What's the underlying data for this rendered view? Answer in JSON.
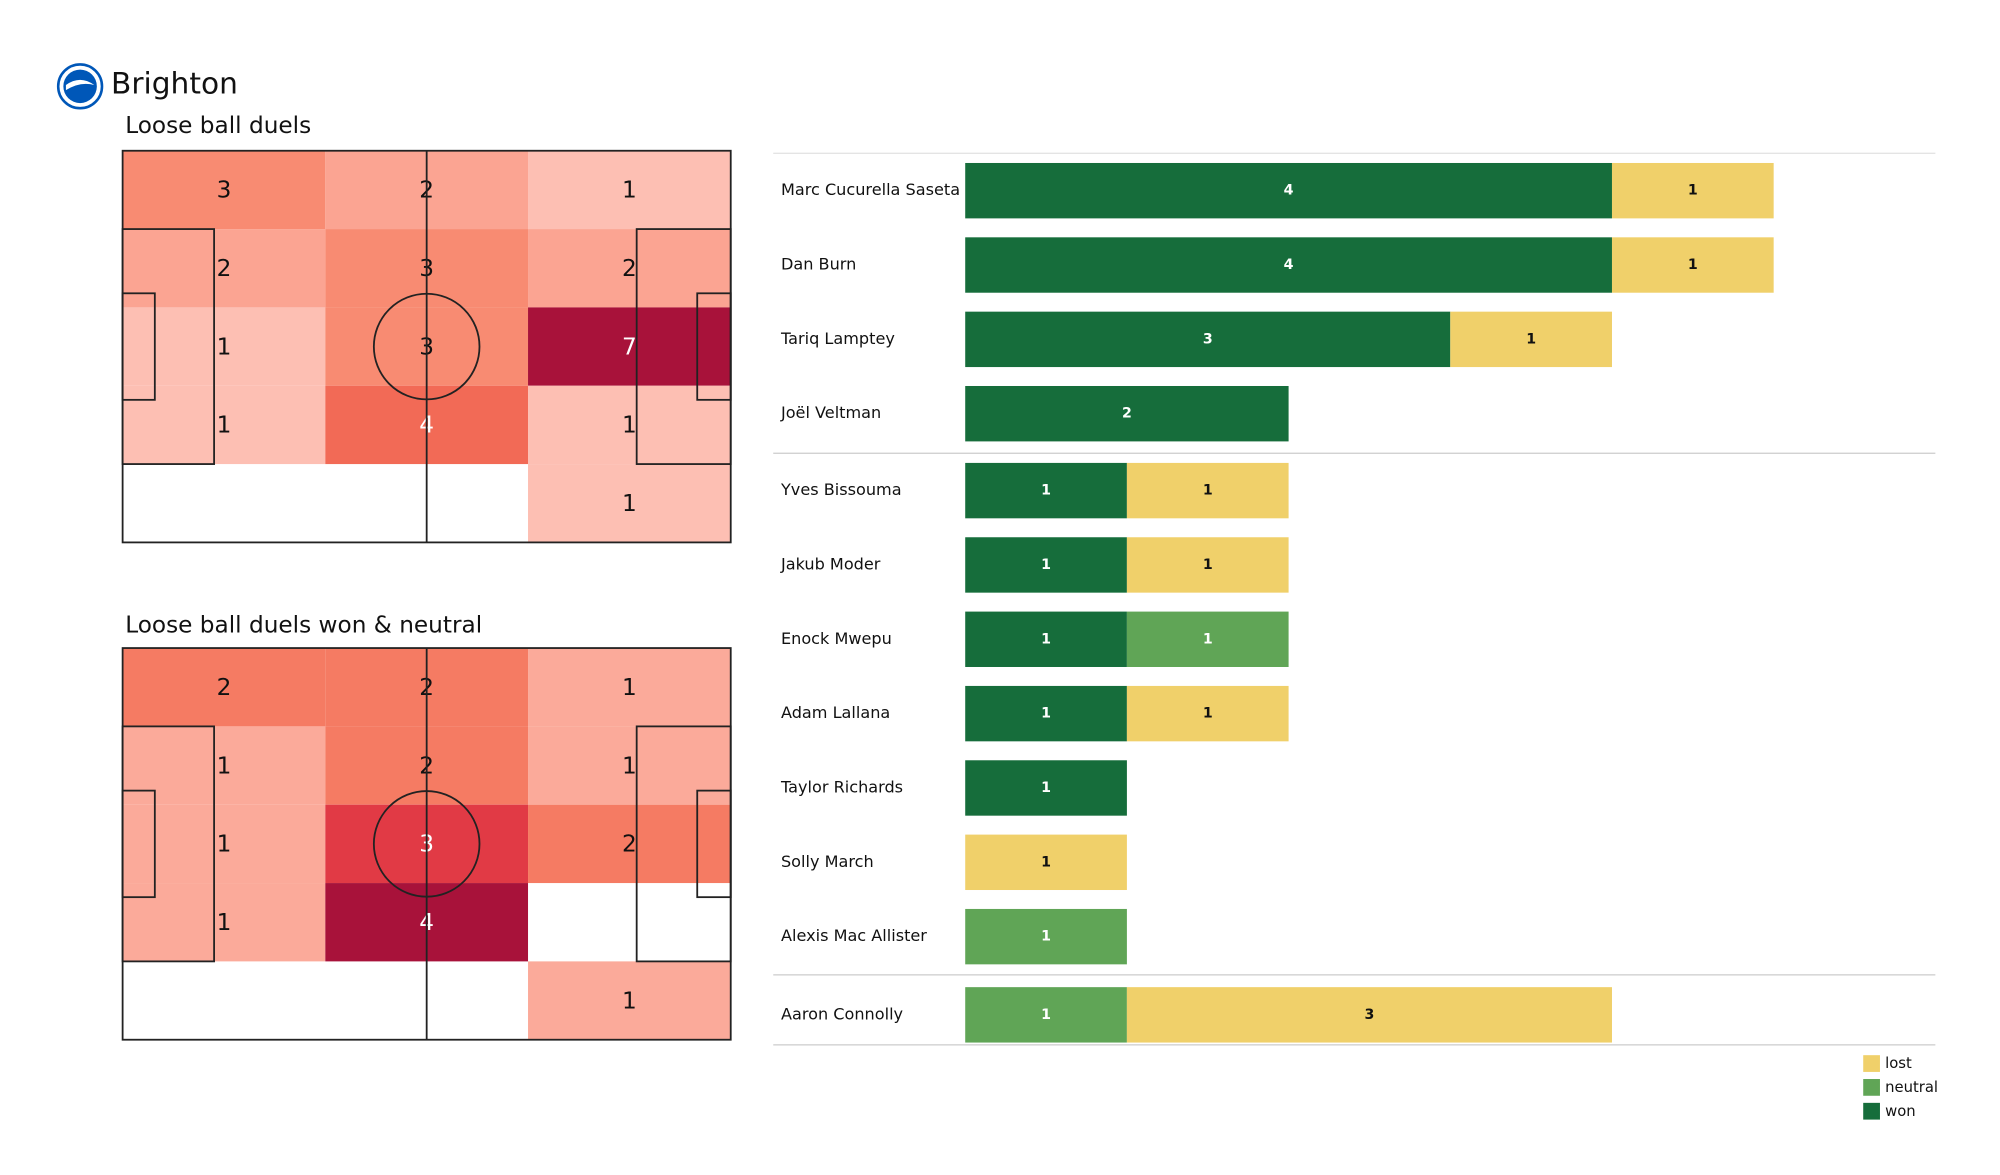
{
  "title": "Brighton",
  "chart_data": [
    {
      "type": "heatmap",
      "title": "Loose ball duels",
      "values": [
        [
          3,
          2,
          1
        ],
        [
          2,
          3,
          2
        ],
        [
          1,
          3,
          7
        ],
        [
          1,
          4,
          1
        ],
        [
          null,
          null,
          1
        ]
      ]
    },
    {
      "type": "heatmap",
      "title": "Loose ball duels won & neutral",
      "values": [
        [
          2,
          2,
          1
        ],
        [
          1,
          2,
          1
        ],
        [
          1,
          3,
          2
        ],
        [
          1,
          4,
          null
        ],
        [
          null,
          null,
          1
        ]
      ]
    },
    {
      "type": "stacked-barh",
      "categories": [
        "Marc Cucurella Saseta",
        "Dan Burn",
        "Tariq Lamptey",
        "Joël Veltman",
        "Yves Bissouma",
        "Jakub Moder",
        "Enock Mwepu",
        "Adam Lallana",
        "Taylor Richards",
        "Solly March",
        "Alexis Mac Allister",
        "Aaron Connolly"
      ],
      "series": [
        {
          "name": "won",
          "color": "#166d3b",
          "values": [
            4,
            4,
            3,
            2,
            1,
            1,
            1,
            1,
            1,
            null,
            null,
            null
          ]
        },
        {
          "name": "neutral",
          "color": "#60a556",
          "values": [
            null,
            null,
            null,
            null,
            null,
            null,
            1,
            null,
            null,
            null,
            1,
            1
          ]
        },
        {
          "name": "lost",
          "color": "#f0d06a",
          "values": [
            1,
            1,
            1,
            null,
            1,
            1,
            null,
            1,
            null,
            1,
            null,
            3
          ]
        }
      ],
      "xlim": [
        0,
        6
      ],
      "legend": "bottom right"
    }
  ]
}
